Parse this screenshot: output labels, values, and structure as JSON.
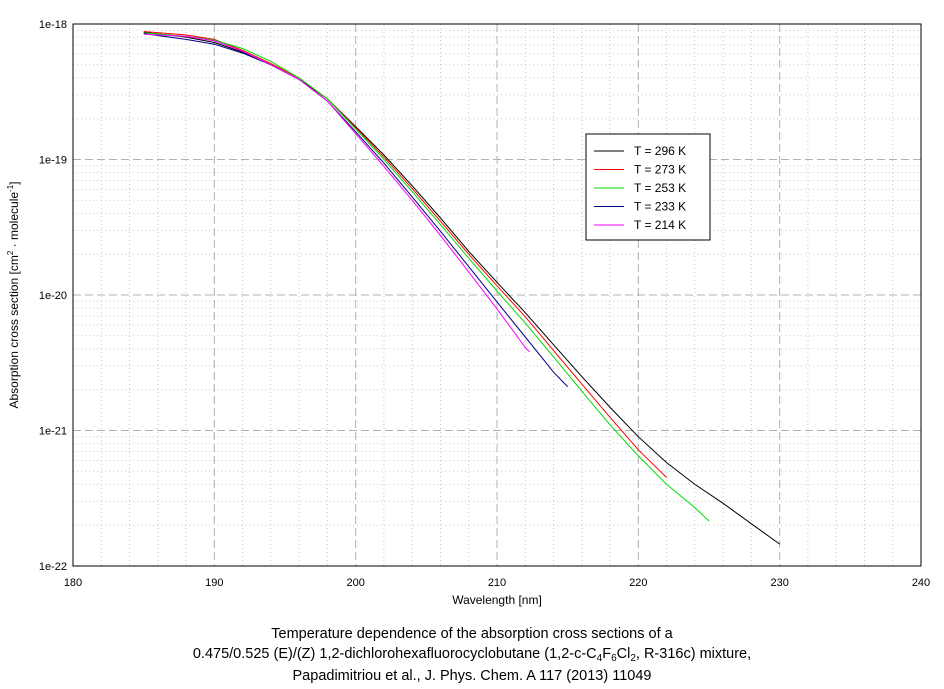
{
  "chart_data": {
    "type": "line",
    "xlabel": "Wavelength [nm]",
    "ylabel": "Absorption cross section [cm",
    "ylabel_sup1": "2",
    "ylabel_mid": " · molecule",
    "ylabel_sup2": "-1",
    "ylabel_end": "]",
    "xlim": [
      180,
      240
    ],
    "ylim": [
      1e-22,
      1e-18
    ],
    "yscale": "log",
    "grid": true,
    "legend_position": "upper-middle-right",
    "x_ticks": [
      "180",
      "190",
      "200",
      "210",
      "220",
      "230",
      "240"
    ],
    "y_ticks": [
      "1e-22",
      "1e-21",
      "1e-20",
      "1e-19",
      "1e-18"
    ],
    "series": [
      {
        "name": "T = 296 K",
        "color": "#000000",
        "points": [
          [
            185,
            8.7e-19
          ],
          [
            188,
            8e-19
          ],
          [
            190,
            7.3e-19
          ],
          [
            192,
            6.2e-19
          ],
          [
            194,
            5e-19
          ],
          [
            196,
            3.9e-19
          ],
          [
            198,
            2.8e-19
          ],
          [
            200,
            1.75e-19
          ],
          [
            202,
            1.08e-19
          ],
          [
            204,
            6.4e-20
          ],
          [
            206,
            3.7e-20
          ],
          [
            208,
            2.1e-20
          ],
          [
            210,
            1.24e-20
          ],
          [
            212,
            7.4e-21
          ],
          [
            214,
            4.3e-21
          ],
          [
            216,
            2.5e-21
          ],
          [
            218,
            1.48e-21
          ],
          [
            220,
            9e-22
          ],
          [
            222,
            5.8e-22
          ],
          [
            224,
            4e-22
          ],
          [
            226,
            2.9e-22
          ],
          [
            228,
            2.05e-22
          ],
          [
            230,
            1.45e-22
          ]
        ]
      },
      {
        "name": "T = 273 K",
        "color": "#ff0000",
        "points": [
          [
            185,
            8.8e-19
          ],
          [
            188,
            8.3e-19
          ],
          [
            190,
            7.7e-19
          ],
          [
            192,
            6.4e-19
          ],
          [
            194,
            5.1e-19
          ],
          [
            196,
            4e-19
          ],
          [
            198,
            2.8e-19
          ],
          [
            200,
            1.72e-19
          ],
          [
            202,
            1.04e-19
          ],
          [
            204,
            6.1e-20
          ],
          [
            206,
            3.5e-20
          ],
          [
            208,
            2e-20
          ],
          [
            210,
            1.17e-20
          ],
          [
            212,
            6.9e-21
          ],
          [
            214,
            3.9e-21
          ],
          [
            216,
            2.2e-21
          ],
          [
            218,
            1.25e-21
          ],
          [
            220,
            7.2e-22
          ],
          [
            222,
            4.5e-22
          ]
        ]
      },
      {
        "name": "T = 253 K",
        "color": "#00dd00",
        "points": [
          [
            185,
            8.6e-19
          ],
          [
            188,
            8.1e-19
          ],
          [
            190,
            7.6e-19
          ],
          [
            192,
            6.6e-19
          ],
          [
            194,
            5.3e-19
          ],
          [
            196,
            4e-19
          ],
          [
            198,
            2.8e-19
          ],
          [
            200,
            1.68e-19
          ],
          [
            202,
            1e-19
          ],
          [
            204,
            5.8e-20
          ],
          [
            206,
            3.3e-20
          ],
          [
            208,
            1.87e-20
          ],
          [
            210,
            1.07e-20
          ],
          [
            212,
            6.2e-21
          ],
          [
            214,
            3.5e-21
          ],
          [
            216,
            1.95e-21
          ],
          [
            218,
            1.1e-21
          ],
          [
            220,
            6.5e-22
          ],
          [
            222,
            4e-22
          ],
          [
            224,
            2.7e-22
          ],
          [
            225,
            2.15e-22
          ]
        ]
      },
      {
        "name": "T = 233 K",
        "color": "#000080",
        "points": [
          [
            185,
            8.5e-19
          ],
          [
            188,
            7.7e-19
          ],
          [
            190,
            7.1e-19
          ],
          [
            192,
            6.1e-19
          ],
          [
            194,
            5e-19
          ],
          [
            196,
            3.9e-19
          ],
          [
            198,
            2.7e-19
          ],
          [
            200,
            1.6e-19
          ],
          [
            202,
            9.4e-20
          ],
          [
            204,
            5.3e-20
          ],
          [
            206,
            2.95e-20
          ],
          [
            208,
            1.62e-20
          ],
          [
            210,
            8.9e-21
          ],
          [
            212,
            4.9e-21
          ],
          [
            214,
            2.7e-21
          ],
          [
            215,
            2.1e-21
          ]
        ]
      },
      {
        "name": "T = 214 K",
        "color": "#ff00ff",
        "points": [
          [
            185,
            8.4e-19
          ],
          [
            188,
            8.1e-19
          ],
          [
            190,
            7.5e-19
          ],
          [
            192,
            6.3e-19
          ],
          [
            194,
            5e-19
          ],
          [
            196,
            3.9e-19
          ],
          [
            198,
            2.7e-19
          ],
          [
            200,
            1.55e-19
          ],
          [
            202,
            8.9e-20
          ],
          [
            204,
            5e-20
          ],
          [
            206,
            2.75e-20
          ],
          [
            208,
            1.48e-20
          ],
          [
            210,
            7.9e-21
          ],
          [
            212,
            4.1e-21
          ],
          [
            212.3,
            3.8e-21
          ]
        ]
      }
    ]
  },
  "caption": {
    "line1": "Temperature dependence of the absorption cross sections of a",
    "line2_a": "0.475/0.525 (E)/(Z) 1,2-dichlorohexafluorocyclobutane (1,2-c-C",
    "line2_s1": "4",
    "line2_b": "F",
    "line2_s2": "6",
    "line2_c": "Cl",
    "line2_s3": "2",
    "line2_d": ", R-316c) mixture,",
    "line3": "Papadimitriou et al., J. Phys. Chem. A 117 (2013) 11049"
  }
}
